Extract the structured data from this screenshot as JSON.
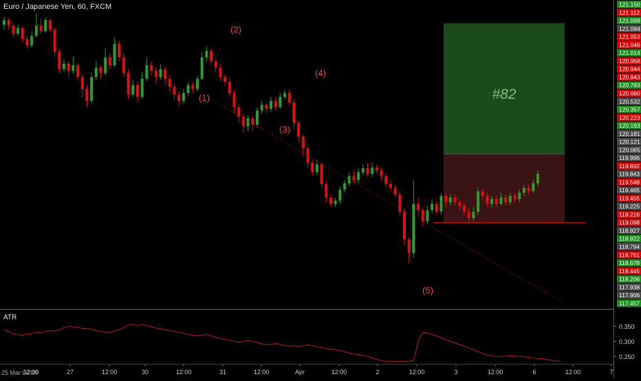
{
  "header": {
    "title": "Euro / Japanese Yen, 60, FXCM"
  },
  "indicator": {
    "label": "ATR",
    "ticks": [
      "0.350",
      "0.300",
      "0.250"
    ]
  },
  "footer": {
    "date_stamp": "25 Mar 00:00"
  },
  "colors": {
    "up": "#2e9c2e",
    "down": "#e01010",
    "atr_line": "#c01818",
    "wave_label": "#f04848",
    "target_fill": "#1b4a1b",
    "stop_fill": "#3a1414"
  },
  "chart_data": {
    "type": "candlestick",
    "symbol": "EURJPY",
    "timeframe": "60",
    "price_ticks": [
      {
        "label": "121.150",
        "color": "up"
      },
      {
        "label": "121.112",
        "color": "down"
      },
      {
        "label": "121.099",
        "color": "up"
      },
      {
        "label": "121.094",
        "color": "gray"
      },
      {
        "label": "121.053",
        "color": "down"
      },
      {
        "label": "121.046",
        "color": "down"
      },
      {
        "label": "121.014",
        "color": "up"
      },
      {
        "label": "120.958",
        "color": "down"
      },
      {
        "label": "120.944",
        "color": "down"
      },
      {
        "label": "120.843",
        "color": "down"
      },
      {
        "label": "120.783",
        "color": "up"
      },
      {
        "label": "120.660",
        "color": "down"
      },
      {
        "label": "120.532",
        "color": "gray"
      },
      {
        "label": "120.357",
        "color": "up"
      },
      {
        "label": "120.223",
        "color": "down"
      },
      {
        "label": "120.193",
        "color": "up"
      },
      {
        "label": "120.181",
        "color": "gray"
      },
      {
        "label": "120.121",
        "color": "gray"
      },
      {
        "label": "120.065",
        "color": "gray"
      },
      {
        "label": "119.996",
        "color": "gray"
      },
      {
        "label": "119.892",
        "color": "down"
      },
      {
        "label": "119.843",
        "color": "gray"
      },
      {
        "label": "119.548",
        "color": "down"
      },
      {
        "label": "119.465",
        "color": "gray"
      },
      {
        "label": "119.455",
        "color": "down"
      },
      {
        "label": "119.225",
        "color": "gray"
      },
      {
        "label": "119.216",
        "color": "down"
      },
      {
        "label": "119.088",
        "color": "down"
      },
      {
        "label": "118.927",
        "color": "gray"
      },
      {
        "label": "118.922",
        "color": "up"
      },
      {
        "label": "118.794",
        "color": "gray"
      },
      {
        "label": "118.761",
        "color": "down"
      },
      {
        "label": "118.678",
        "color": "up"
      },
      {
        "label": "118.445",
        "color": "down"
      },
      {
        "label": "118.206",
        "color": "up"
      },
      {
        "label": "117.938",
        "color": "gray"
      },
      {
        "label": "117.906",
        "color": "gray"
      },
      {
        "label": "117.457",
        "color": "up"
      }
    ],
    "x_ticks": [
      "27",
      "12:00",
      "30",
      "12:00",
      "31",
      "12:00",
      "Apr",
      "12:00",
      "2",
      "12:00",
      "3",
      "12:00",
      "6",
      "12:00",
      "7"
    ],
    "wave_labels": [
      {
        "text": "(1)",
        "price": 120.0
      },
      {
        "text": "(2)",
        "price": 120.86
      },
      {
        "text": "(3)",
        "price": 119.6
      },
      {
        "text": "(4)",
        "price": 120.31
      },
      {
        "text": "(5)",
        "price": 117.57
      }
    ],
    "position": {
      "label": "#82",
      "entry": 119.33,
      "target": 120.98,
      "stop": 118.46
    },
    "atr_range": [
      0.23,
      0.38
    ],
    "price_range": [
      117.4,
      121.23
    ],
    "candles": [
      {
        "o": 120.96,
        "c": 121.02,
        "h": 121.06,
        "l": 120.9
      },
      {
        "o": 121.02,
        "c": 120.95,
        "h": 121.05,
        "l": 120.9
      },
      {
        "o": 120.95,
        "c": 120.85,
        "h": 120.98,
        "l": 120.8
      },
      {
        "o": 120.85,
        "c": 120.92,
        "h": 120.96,
        "l": 120.82
      },
      {
        "o": 120.92,
        "c": 120.78,
        "h": 120.94,
        "l": 120.74
      },
      {
        "o": 120.78,
        "c": 120.7,
        "h": 120.82,
        "l": 120.66
      },
      {
        "o": 120.7,
        "c": 120.82,
        "h": 120.88,
        "l": 120.68
      },
      {
        "o": 120.82,
        "c": 120.95,
        "h": 121.1,
        "l": 120.8
      },
      {
        "o": 120.95,
        "c": 120.88,
        "h": 121.04,
        "l": 120.84
      },
      {
        "o": 120.88,
        "c": 121.02,
        "h": 121.06,
        "l": 120.86
      },
      {
        "o": 121.02,
        "c": 120.9,
        "h": 121.04,
        "l": 120.86
      },
      {
        "o": 120.9,
        "c": 120.62,
        "h": 120.92,
        "l": 120.55
      },
      {
        "o": 120.62,
        "c": 120.4,
        "h": 120.66,
        "l": 120.35
      },
      {
        "o": 120.4,
        "c": 120.47,
        "h": 120.52,
        "l": 120.36
      },
      {
        "o": 120.47,
        "c": 120.38,
        "h": 120.5,
        "l": 120.3
      },
      {
        "o": 120.38,
        "c": 120.45,
        "h": 120.56,
        "l": 120.34
      },
      {
        "o": 120.45,
        "c": 120.3,
        "h": 120.48,
        "l": 120.25
      },
      {
        "o": 120.3,
        "c": 120.15,
        "h": 120.34,
        "l": 120.05
      },
      {
        "o": 120.15,
        "c": 120.0,
        "h": 120.2,
        "l": 119.92
      },
      {
        "o": 120.0,
        "c": 120.3,
        "h": 120.35,
        "l": 119.98
      },
      {
        "o": 120.3,
        "c": 120.42,
        "h": 120.5,
        "l": 120.26
      },
      {
        "o": 120.42,
        "c": 120.35,
        "h": 120.45,
        "l": 120.28
      },
      {
        "o": 120.35,
        "c": 120.55,
        "h": 120.66,
        "l": 120.32
      },
      {
        "o": 120.55,
        "c": 120.45,
        "h": 120.6,
        "l": 120.4
      },
      {
        "o": 120.45,
        "c": 120.72,
        "h": 120.8,
        "l": 120.43
      },
      {
        "o": 120.72,
        "c": 120.55,
        "h": 120.76,
        "l": 120.5
      },
      {
        "o": 120.55,
        "c": 120.35,
        "h": 120.6,
        "l": 120.3
      },
      {
        "o": 120.35,
        "c": 120.08,
        "h": 120.4,
        "l": 120.02
      },
      {
        "o": 120.08,
        "c": 120.2,
        "h": 120.26,
        "l": 120.05
      },
      {
        "o": 120.2,
        "c": 120.05,
        "h": 120.24,
        "l": 119.98
      },
      {
        "o": 120.05,
        "c": 120.28,
        "h": 120.36,
        "l": 120.03
      },
      {
        "o": 120.28,
        "c": 120.45,
        "h": 120.55,
        "l": 120.25
      },
      {
        "o": 120.45,
        "c": 120.38,
        "h": 120.5,
        "l": 120.32
      },
      {
        "o": 120.38,
        "c": 120.3,
        "h": 120.42,
        "l": 120.22
      },
      {
        "o": 120.3,
        "c": 120.4,
        "h": 120.46,
        "l": 120.27
      },
      {
        "o": 120.4,
        "c": 120.28,
        "h": 120.44,
        "l": 120.2
      },
      {
        "o": 120.28,
        "c": 120.18,
        "h": 120.32,
        "l": 120.12
      },
      {
        "o": 120.18,
        "c": 120.08,
        "h": 120.22,
        "l": 120.02
      },
      {
        "o": 120.08,
        "c": 120.0,
        "h": 120.12,
        "l": 119.94
      },
      {
        "o": 120.0,
        "c": 120.1,
        "h": 120.15,
        "l": 119.96
      },
      {
        "o": 120.1,
        "c": 120.2,
        "h": 120.24,
        "l": 120.06
      },
      {
        "o": 120.2,
        "c": 120.15,
        "h": 120.24,
        "l": 120.1
      },
      {
        "o": 120.15,
        "c": 120.28,
        "h": 120.32,
        "l": 120.12
      },
      {
        "o": 120.28,
        "c": 120.55,
        "h": 120.62,
        "l": 120.26
      },
      {
        "o": 120.55,
        "c": 120.63,
        "h": 120.68,
        "l": 120.5
      },
      {
        "o": 120.63,
        "c": 120.5,
        "h": 120.66,
        "l": 120.45
      },
      {
        "o": 120.5,
        "c": 120.42,
        "h": 120.54,
        "l": 120.36
      },
      {
        "o": 120.42,
        "c": 120.3,
        "h": 120.46,
        "l": 120.25
      },
      {
        "o": 120.3,
        "c": 120.24,
        "h": 120.34,
        "l": 120.18
      },
      {
        "o": 120.24,
        "c": 120.1,
        "h": 120.28,
        "l": 120.05
      },
      {
        "o": 120.1,
        "c": 119.92,
        "h": 120.14,
        "l": 119.85
      },
      {
        "o": 119.92,
        "c": 119.8,
        "h": 119.96,
        "l": 119.72
      },
      {
        "o": 119.8,
        "c": 119.68,
        "h": 119.84,
        "l": 119.6
      },
      {
        "o": 119.68,
        "c": 119.78,
        "h": 119.82,
        "l": 119.62
      },
      {
        "o": 119.78,
        "c": 119.7,
        "h": 119.82,
        "l": 119.62
      },
      {
        "o": 119.7,
        "c": 119.88,
        "h": 119.92,
        "l": 119.66
      },
      {
        "o": 119.88,
        "c": 119.95,
        "h": 120.0,
        "l": 119.84
      },
      {
        "o": 119.95,
        "c": 119.9,
        "h": 119.98,
        "l": 119.84
      },
      {
        "o": 119.9,
        "c": 120.0,
        "h": 120.05,
        "l": 119.86
      },
      {
        "o": 120.0,
        "c": 119.92,
        "h": 120.04,
        "l": 119.88
      },
      {
        "o": 119.92,
        "c": 120.05,
        "h": 120.1,
        "l": 119.9
      },
      {
        "o": 120.05,
        "c": 120.1,
        "h": 120.14,
        "l": 120.02
      },
      {
        "o": 120.1,
        "c": 119.98,
        "h": 120.14,
        "l": 119.94
      },
      {
        "o": 119.98,
        "c": 119.72,
        "h": 120.02,
        "l": 119.64
      },
      {
        "o": 119.72,
        "c": 119.55,
        "h": 119.76,
        "l": 119.48
      },
      {
        "o": 119.55,
        "c": 119.4,
        "h": 119.58,
        "l": 119.3
      },
      {
        "o": 119.4,
        "c": 119.22,
        "h": 119.44,
        "l": 119.15
      },
      {
        "o": 119.22,
        "c": 119.1,
        "h": 119.26,
        "l": 119.05
      },
      {
        "o": 119.1,
        "c": 119.2,
        "h": 119.26,
        "l": 119.06
      },
      {
        "o": 119.2,
        "c": 118.95,
        "h": 119.22,
        "l": 118.9
      },
      {
        "o": 118.95,
        "c": 118.78,
        "h": 118.98,
        "l": 118.72
      },
      {
        "o": 118.78,
        "c": 118.7,
        "h": 118.82,
        "l": 118.66
      },
      {
        "o": 118.7,
        "c": 118.74,
        "h": 118.78,
        "l": 118.66
      },
      {
        "o": 118.74,
        "c": 118.88,
        "h": 118.92,
        "l": 118.7
      },
      {
        "o": 118.88,
        "c": 118.96,
        "h": 119.0,
        "l": 118.84
      },
      {
        "o": 118.96,
        "c": 119.05,
        "h": 119.1,
        "l": 118.92
      },
      {
        "o": 119.05,
        "c": 119.0,
        "h": 119.12,
        "l": 118.96
      },
      {
        "o": 119.0,
        "c": 119.1,
        "h": 119.15,
        "l": 118.96
      },
      {
        "o": 119.1,
        "c": 119.15,
        "h": 119.2,
        "l": 119.06
      },
      {
        "o": 119.15,
        "c": 119.08,
        "h": 119.22,
        "l": 119.04
      },
      {
        "o": 119.08,
        "c": 119.16,
        "h": 119.22,
        "l": 119.04
      },
      {
        "o": 119.16,
        "c": 119.12,
        "h": 119.2,
        "l": 119.08
      },
      {
        "o": 119.12,
        "c": 119.05,
        "h": 119.16,
        "l": 119.0
      },
      {
        "o": 119.05,
        "c": 118.95,
        "h": 119.08,
        "l": 118.9
      },
      {
        "o": 118.95,
        "c": 118.9,
        "h": 119.0,
        "l": 118.86
      },
      {
        "o": 118.9,
        "c": 118.82,
        "h": 118.94,
        "l": 118.78
      },
      {
        "o": 118.82,
        "c": 118.6,
        "h": 118.86,
        "l": 118.55
      },
      {
        "o": 118.6,
        "c": 118.25,
        "h": 118.64,
        "l": 118.18
      },
      {
        "o": 118.25,
        "c": 118.08,
        "h": 118.28,
        "l": 117.95
      },
      {
        "o": 118.08,
        "c": 118.7,
        "h": 119.0,
        "l": 118.02
      },
      {
        "o": 118.7,
        "c": 118.62,
        "h": 118.78,
        "l": 118.55
      },
      {
        "o": 118.62,
        "c": 118.48,
        "h": 118.66,
        "l": 118.42
      },
      {
        "o": 118.48,
        "c": 118.62,
        "h": 118.68,
        "l": 118.44
      },
      {
        "o": 118.62,
        "c": 118.7,
        "h": 118.76,
        "l": 118.58
      },
      {
        "o": 118.7,
        "c": 118.6,
        "h": 118.74,
        "l": 118.56
      },
      {
        "o": 118.6,
        "c": 118.8,
        "h": 118.84,
        "l": 118.56
      },
      {
        "o": 118.8,
        "c": 118.72,
        "h": 118.84,
        "l": 118.66
      },
      {
        "o": 118.72,
        "c": 118.78,
        "h": 118.82,
        "l": 118.68
      },
      {
        "o": 118.78,
        "c": 118.72,
        "h": 118.82,
        "l": 118.68
      },
      {
        "o": 118.72,
        "c": 118.68,
        "h": 118.76,
        "l": 118.62
      },
      {
        "o": 118.68,
        "c": 118.6,
        "h": 118.72,
        "l": 118.55
      },
      {
        "o": 118.6,
        "c": 118.52,
        "h": 118.64,
        "l": 118.46
      },
      {
        "o": 118.52,
        "c": 118.6,
        "h": 118.66,
        "l": 118.48
      },
      {
        "o": 118.6,
        "c": 118.86,
        "h": 118.9,
        "l": 118.56
      },
      {
        "o": 118.86,
        "c": 118.8,
        "h": 118.9,
        "l": 118.74
      },
      {
        "o": 118.8,
        "c": 118.7,
        "h": 118.84,
        "l": 118.66
      },
      {
        "o": 118.7,
        "c": 118.76,
        "h": 118.8,
        "l": 118.66
      },
      {
        "o": 118.76,
        "c": 118.7,
        "h": 118.8,
        "l": 118.66
      },
      {
        "o": 118.7,
        "c": 118.78,
        "h": 118.84,
        "l": 118.68
      },
      {
        "o": 118.78,
        "c": 118.72,
        "h": 118.82,
        "l": 118.68
      },
      {
        "o": 118.72,
        "c": 118.8,
        "h": 118.84,
        "l": 118.68
      },
      {
        "o": 118.8,
        "c": 118.76,
        "h": 118.84,
        "l": 118.72
      },
      {
        "o": 118.76,
        "c": 118.84,
        "h": 118.88,
        "l": 118.72
      },
      {
        "o": 118.84,
        "c": 118.9,
        "h": 118.94,
        "l": 118.8
      },
      {
        "o": 118.9,
        "c": 118.86,
        "h": 118.94,
        "l": 118.82
      },
      {
        "o": 118.86,
        "c": 118.96,
        "h": 119.0,
        "l": 118.84
      },
      {
        "o": 118.96,
        "c": 119.08,
        "h": 119.12,
        "l": 118.92
      }
    ],
    "atr": [
      0.338,
      0.332,
      0.325,
      0.322,
      0.32,
      0.324,
      0.326,
      0.33,
      0.328,
      0.333,
      0.336,
      0.334,
      0.338,
      0.345,
      0.35,
      0.348,
      0.346,
      0.343,
      0.342,
      0.34,
      0.336,
      0.332,
      0.329,
      0.33,
      0.334,
      0.338,
      0.345,
      0.355,
      0.356,
      0.352,
      0.356,
      0.352,
      0.348,
      0.344,
      0.342,
      0.338,
      0.336,
      0.333,
      0.33,
      0.327,
      0.323,
      0.32,
      0.318,
      0.321,
      0.322,
      0.318,
      0.314,
      0.31,
      0.306,
      0.304,
      0.3,
      0.298,
      0.3,
      0.303,
      0.3,
      0.296,
      0.292,
      0.289,
      0.29,
      0.293,
      0.29,
      0.286,
      0.284,
      0.286,
      0.283,
      0.285,
      0.288,
      0.286,
      0.282,
      0.279,
      0.276,
      0.274,
      0.272,
      0.269,
      0.266,
      0.262,
      0.258,
      0.256,
      0.253,
      0.25,
      0.245,
      0.24,
      0.236,
      0.234,
      0.234,
      0.234,
      0.234,
      0.234,
      0.234,
      0.236,
      0.3,
      0.33,
      0.328,
      0.323,
      0.318,
      0.312,
      0.306,
      0.3,
      0.295,
      0.29,
      0.284,
      0.278,
      0.272,
      0.266,
      0.26,
      0.255,
      0.252,
      0.25,
      0.25,
      0.25,
      0.252,
      0.251,
      0.25,
      0.249,
      0.247,
      0.245,
      0.243,
      0.242,
      0.24,
      0.237,
      0.235,
      0.234
    ]
  }
}
